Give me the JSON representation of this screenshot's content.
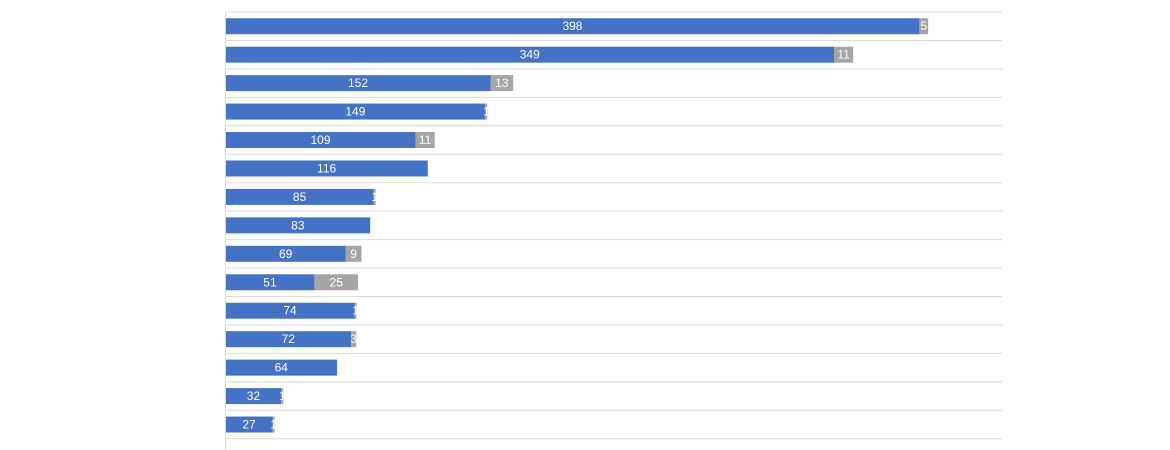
{
  "chart_data": {
    "type": "bar",
    "orientation": "horizontal",
    "stacked": true,
    "title": "",
    "xlabel": "",
    "ylabel": "",
    "xlim": [
      0,
      450
    ],
    "grid": true,
    "legend": "none",
    "category_labels_visible": false,
    "series": [
      {
        "color": "#4472C4",
        "values": [
          398,
          349,
          152,
          149,
          109,
          116,
          85,
          83,
          69,
          51,
          74,
          72,
          64,
          32,
          27
        ],
        "labels": [
          "398",
          "349",
          "152",
          "149",
          "109",
          "116",
          "85",
          "83",
          "69",
          "51",
          "74",
          "72",
          "64",
          "32",
          "27"
        ]
      },
      {
        "color": "#A5A5A5",
        "values": [
          5,
          11,
          13,
          1,
          11,
          0,
          1,
          0,
          9,
          25,
          1,
          3,
          0,
          1,
          1
        ],
        "labels": [
          "5",
          "11",
          "13",
          "1",
          "11",
          "",
          "1",
          "",
          "9",
          "25",
          "1",
          "3",
          "",
          "1",
          "1"
        ]
      }
    ]
  }
}
